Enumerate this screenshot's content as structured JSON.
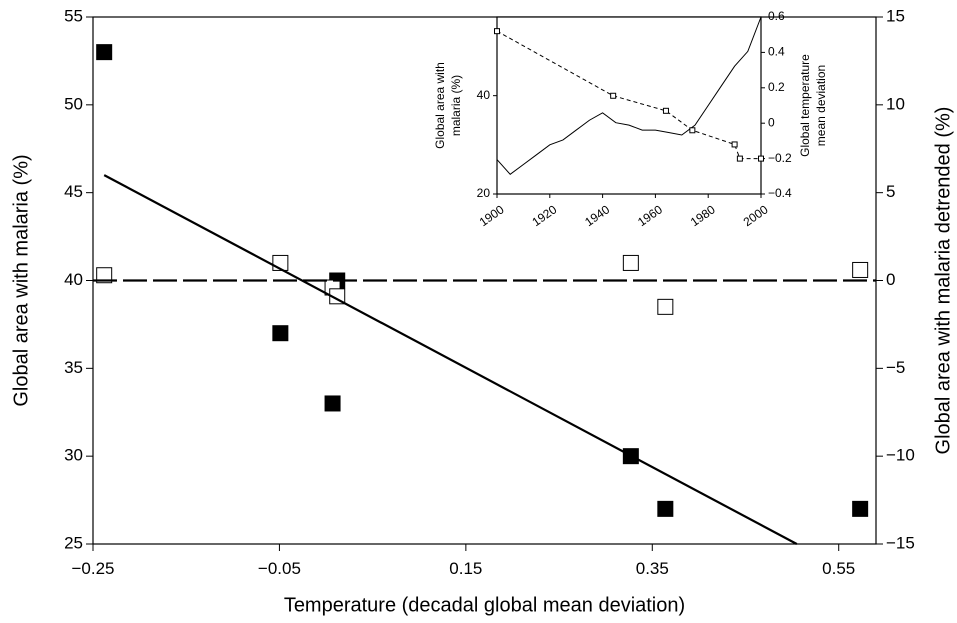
{
  "chart_data": [
    {
      "type": "scatter",
      "x_label": "Temperature (decadal global mean deviation)",
      "y_label": "Global area with malaria (%)",
      "y2_label": "Global area with malaria detrended (%)",
      "xlim": [
        -0.25,
        0.59
      ],
      "xticks": [
        {
          "value": -0.25,
          "label": "−0.25"
        },
        {
          "value": -0.05,
          "label": "−0.05"
        },
        0.15,
        0.35,
        0.55
      ],
      "ylim": [
        25,
        55
      ],
      "yticks": [
        25,
        30,
        35,
        40,
        45,
        50,
        55
      ],
      "y2lim": [
        -15,
        15
      ],
      "y2ticks": [
        {
          "value": -15,
          "label": "−15"
        },
        {
          "value": -10,
          "label": "−10"
        },
        {
          "value": -5,
          "label": "−5"
        },
        0,
        5,
        10,
        15
      ],
      "series": [
        {
          "marker": "filled-square",
          "color": "#000000",
          "x": [
            -0.238,
            -0.049,
            0.007,
            0.012,
            0.327,
            0.364,
            0.573
          ],
          "values": [
            53,
            37,
            33,
            40,
            30,
            27,
            27
          ]
        },
        {
          "marker": "open-square",
          "color": "#000000",
          "axis": "y2",
          "x": [
            -0.238,
            -0.049,
            0.007,
            0.012,
            0.327,
            0.364,
            0.573
          ],
          "values": [
            0.3,
            1,
            -0.4,
            -0.9,
            1,
            -1.5,
            0.6
          ]
        },
        {
          "line": "solid",
          "color": "#000000",
          "x": [
            -0.238,
            0.505
          ],
          "values": [
            46,
            25
          ]
        },
        {
          "line": "dashed",
          "color": "#000000",
          "axis": "y2",
          "x": [
            -0.25,
            0.59
          ],
          "values": [
            0,
            0
          ]
        }
      ]
    },
    {
      "type": "line",
      "y_label": [
        "Global area with",
        "malaria (%)"
      ],
      "y2_label": [
        "Global temperature",
        "mean deviation"
      ],
      "xlim": [
        1900,
        2000
      ],
      "xticks": [
        1900,
        1920,
        1940,
        1960,
        1980,
        2000
      ],
      "ylim": [
        20,
        56
      ],
      "yticks": [
        20,
        40
      ],
      "y2lim": [
        -0.4,
        0.6
      ],
      "y2ticks": [
        {
          "value": -0.4,
          "label": "−0.4"
        },
        {
          "value": -0.2,
          "label": "−0.2"
        },
        0,
        0.2,
        0.4,
        0.6
      ],
      "series": [
        {
          "line": "solid",
          "color": "#000000",
          "x": [
            1900,
            1905,
            1910,
            1915,
            1920,
            1925,
            1930,
            1935,
            1940,
            1945,
            1950,
            1955,
            1960,
            1965,
            1970,
            1975,
            1980,
            1985,
            1990,
            1995,
            2000
          ],
          "values": [
            27,
            24,
            26,
            28,
            30,
            31,
            33,
            35,
            36.5,
            34.5,
            34,
            33,
            33,
            32.5,
            32,
            34,
            38,
            42,
            46,
            49,
            56
          ]
        },
        {
          "line": "dashed",
          "marker": "open-square",
          "color": "#000000",
          "axis": "y2",
          "x": [
            1900,
            1944,
            1964,
            1974,
            1990,
            1992,
            2000
          ],
          "values": [
            0.52,
            0.155,
            0.07,
            -0.04,
            -0.12,
            -0.2,
            -0.2
          ]
        }
      ]
    }
  ]
}
